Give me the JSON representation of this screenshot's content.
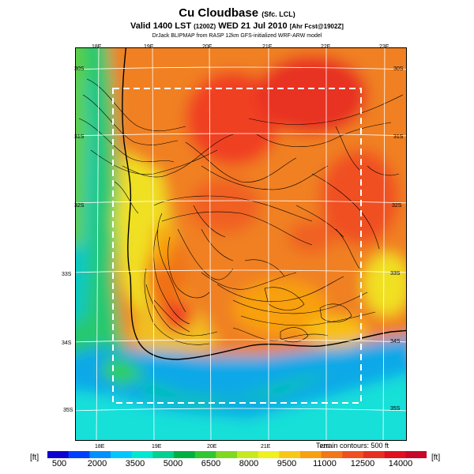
{
  "header": {
    "title": "Cu Cloudbase",
    "title_suffix": "(Sfc. LCL)",
    "subtitle_main": "Valid 1400 LST",
    "subtitle_code": "(1200Z)",
    "subtitle_date": "WED 21 Jul 2010",
    "subtitle_tag": "[Ahr Fcst@1902Z]",
    "model_line": "DrJack BLIPMAP from RASP 12km GFS-initialized WRF-ARW model"
  },
  "map": {
    "longitude_labels_top": [
      "18E",
      "19E",
      "20E",
      "21E",
      "22E",
      "23E"
    ],
    "longitude_labels_bottom": [
      "18E",
      "19E",
      "20E",
      "21E",
      "22E"
    ],
    "latitude_labels_left": [
      "30S",
      "31S",
      "32S",
      "33S",
      "34S",
      "35S"
    ],
    "latitude_labels_right": [
      "30S",
      "31S",
      "32S",
      "33S",
      "34S",
      "35S"
    ],
    "terrain_note": "Terrain contours: 500 ft"
  },
  "colorbar": {
    "unit_left": "[ft]",
    "unit_right": "[ft]",
    "labels": [
      "500",
      "2000",
      "3500",
      "5000",
      "6500",
      "8000",
      "9500",
      "11000",
      "12500",
      "14000"
    ],
    "colors": [
      "#1000d0",
      "#0040ff",
      "#0090ff",
      "#00c8ff",
      "#00e8d0",
      "#00d090",
      "#00b040",
      "#30c830",
      "#80d820",
      "#c8e820",
      "#f0f020",
      "#f8c818",
      "#f8a010",
      "#f07818",
      "#f05020",
      "#e83020",
      "#e01020",
      "#c80828"
    ]
  }
}
